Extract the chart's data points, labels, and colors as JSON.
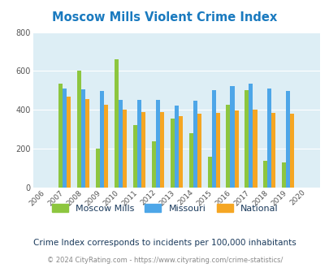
{
  "title": "Moscow Mills Violent Crime Index",
  "years": [
    2006,
    2007,
    2008,
    2009,
    2010,
    2011,
    2012,
    2013,
    2014,
    2015,
    2016,
    2017,
    2018,
    2019,
    2020
  ],
  "moscow_mills": [
    null,
    535,
    600,
    200,
    660,
    320,
    240,
    355,
    280,
    158,
    428,
    500,
    138,
    130,
    null
  ],
  "missouri": [
    null,
    510,
    505,
    498,
    452,
    450,
    453,
    422,
    447,
    500,
    523,
    533,
    508,
    497,
    null
  ],
  "national": [
    null,
    468,
    455,
    428,
    402,
    390,
    390,
    368,
    380,
    385,
    398,
    400,
    383,
    382,
    null
  ],
  "colors": {
    "moscow_mills": "#8dc63f",
    "missouri": "#4da6e8",
    "national": "#f5a623"
  },
  "ylim": [
    0,
    800
  ],
  "yticks": [
    0,
    200,
    400,
    600,
    800
  ],
  "plot_bg": "#ddeef5",
  "title_color": "#1a7abf",
  "legend_text_color": "#1a3a5c",
  "note_color": "#1a3a5c",
  "footer_color": "#888888",
  "footer_link_color": "#4da6e8",
  "note_text": "Crime Index corresponds to incidents per 100,000 inhabitants",
  "footer_text": "© 2024 CityRating.com - https://www.cityrating.com/crime-statistics/",
  "legend_labels": [
    "Moscow Mills",
    "Missouri",
    "National"
  ]
}
